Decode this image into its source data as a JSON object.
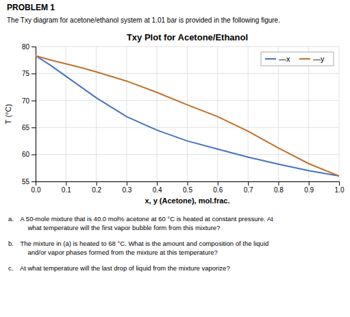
{
  "chart_data": {
    "type": "line",
    "header": "PROBLEM 1",
    "subtitle": "The Txy diagram for acetone/ethanol system at 1.01 bar is provided in the following figure.",
    "title": "Txy Plot for Acetone/Ethanol",
    "x_label": "x, y (Acetone), mol.frac.",
    "y_label": "T (°C)",
    "x": [
      0.0,
      0.05,
      0.1,
      0.15,
      0.2,
      0.3,
      0.4,
      0.5,
      0.6,
      0.7,
      0.8,
      0.9,
      1.0
    ],
    "series": [
      {
        "name": "—x",
        "color": "#4472c4",
        "values": [
          78.3,
          76.5,
          74.5,
          72.5,
          70.5,
          67.0,
          64.5,
          62.5,
          61.0,
          59.5,
          58.2,
          57.0,
          56.0
        ]
      },
      {
        "name": "—y",
        "color": "#c07028",
        "values": [
          78.3,
          77.5,
          76.8,
          76.1,
          75.3,
          73.6,
          71.5,
          69.2,
          67.0,
          64.3,
          61.2,
          58.3,
          56.0
        ]
      }
    ],
    "xlim": [
      0.0,
      1.0
    ],
    "ylim": [
      55,
      80
    ],
    "xticks": [
      {
        "value": 0.0,
        "label": "0.0"
      },
      0.1,
      0.2,
      0.3,
      0.4,
      0.5,
      0.6,
      0.7,
      0.8,
      0.9,
      {
        "value": 1.0,
        "label": "1.0"
      }
    ],
    "yticks": [
      55,
      60,
      65,
      70,
      75,
      80
    ],
    "grid": true,
    "legend": "upper right",
    "annotations": [
      "a. A 50-mole mixture that is 40.0 mol% acetone at 60 °C is heated at constant pressure. At\n   what temperature will the first vapor bubble form from this mixture?",
      "b. The mixture in (a) is heated to 68 °C. What is the amount and composition of the liquid\n   and/or vapor phases formed from the mixture at this temperature?",
      "c. At what temperature will the last drop of liquid from the mixture vaporize?"
    ]
  }
}
